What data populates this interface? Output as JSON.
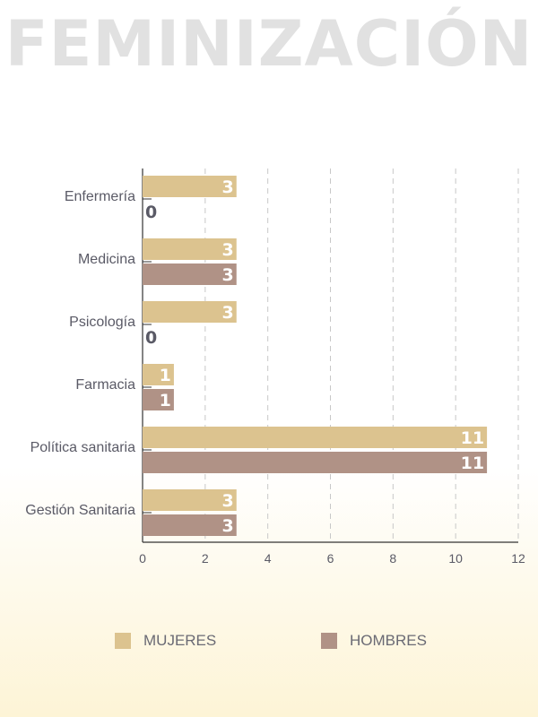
{
  "title": "FEMINIZACIÓN",
  "colors": {
    "mujeres": "#dcc38f",
    "hombres": "#b09286",
    "axis": "#333333",
    "grid": "#c8c8c8",
    "text": "#5a5a66"
  },
  "legend": {
    "mujeres": "MUJERES",
    "hombres": "HOMBRES"
  },
  "chart_data": {
    "type": "bar",
    "orientation": "horizontal",
    "categories": [
      "Enfermería",
      "Medicina",
      "Psicología",
      "Farmacia",
      "Política sanitaria",
      "Gestión Sanitaria"
    ],
    "series": [
      {
        "name": "MUJERES",
        "values": [
          3,
          3,
          3,
          1,
          11,
          3
        ]
      },
      {
        "name": "HOMBRES",
        "values": [
          0,
          3,
          0,
          1,
          11,
          3
        ]
      }
    ],
    "xlim": [
      0,
      12
    ],
    "xticks": [
      0,
      2,
      4,
      6,
      8,
      10,
      12
    ],
    "grid": "vertical dashed",
    "legend_position": "bottom"
  }
}
